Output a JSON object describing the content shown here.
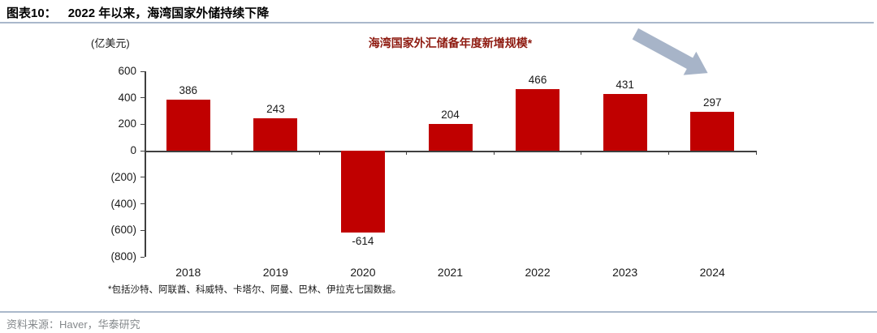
{
  "header": {
    "figure_label": "图表10：",
    "figure_title": "2022 年以来，海湾国家外储持续下降"
  },
  "chart": {
    "unit_label": "(亿美元)",
    "title": "海湾国家外汇储备年度新增规模*",
    "footnote": "*包括沙特、阿联酋、科威特、卡塔尔、阿曼、巴林、伊拉克七国数据。"
  },
  "chart_data": {
    "type": "bar",
    "title": "海湾国家外汇储备年度新增规模*",
    "categories": [
      "2018",
      "2019",
      "2020",
      "2021",
      "2022",
      "2023",
      "2024"
    ],
    "values": [
      386,
      243,
      -614,
      204,
      466,
      431,
      297
    ],
    "xlabel": "",
    "ylabel": "(亿美元)",
    "ylim": [
      -800,
      600
    ],
    "ytick_step": 200,
    "ytick_labels": [
      "600",
      "400",
      "200",
      "0",
      "(200)",
      "(400)",
      "(600)",
      "(800)"
    ],
    "grid": false,
    "legend": "none",
    "bar_color": "#c00000",
    "annotations": [
      {
        "name": "trend-arrow",
        "shape": "arrow-down-right",
        "color": "#a7b4c8"
      }
    ]
  },
  "footer": {
    "source": "资料来源：Haver，华泰研究"
  },
  "colors": {
    "bar": "#c00000",
    "chart_title": "#8e1a10",
    "divider": "#aab8cb",
    "source_text": "#85898c",
    "axis": "#3f3f3f",
    "arrow": "#a7b4c8"
  }
}
